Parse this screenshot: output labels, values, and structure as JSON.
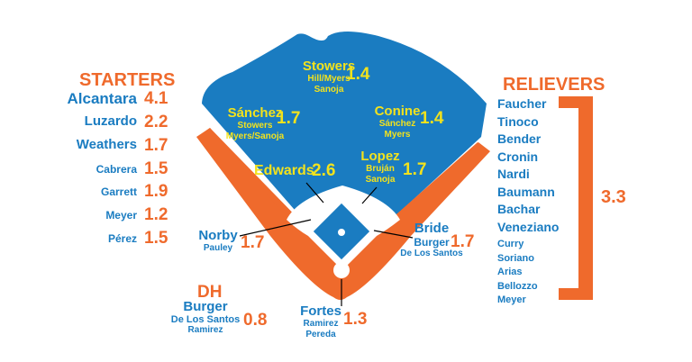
{
  "colors": {
    "blue": "#1a7cc1",
    "orange": "#ef6a2c",
    "yellow": "#f2e21d",
    "infield": "#ffffff"
  },
  "starters": {
    "title": "STARTERS",
    "pitchers": [
      {
        "name": "Alcantara",
        "value": "4.1"
      },
      {
        "name": "Luzardo",
        "value": "2.2"
      },
      {
        "name": "Weathers",
        "value": "1.7"
      },
      {
        "name": "Cabrera",
        "value": "1.5"
      },
      {
        "name": "Garrett",
        "value": "1.9"
      },
      {
        "name": "Meyer",
        "value": "1.2"
      },
      {
        "name": "Pérez",
        "value": "1.5"
      }
    ]
  },
  "relievers": {
    "title": "RELIEVERS",
    "value": "3.3",
    "names": [
      "Faucher",
      "Tinoco",
      "Bender",
      "Cronin",
      "Nardi",
      "Baumann",
      "Bachar",
      "Veneziano",
      "Curry",
      "Soriano",
      "Arias",
      "Bellozzo",
      "Meyer"
    ]
  },
  "positions": {
    "cf": {
      "main": "Stowers",
      "subs": [
        "Hill/Myers",
        "Sanoja"
      ],
      "value": "1.4"
    },
    "lf": {
      "main": "Sánchez",
      "subs": [
        "Stowers",
        "Myers/Sanoja"
      ],
      "value": "1.7"
    },
    "rf": {
      "main": "Conine",
      "subs": [
        "Sánchez",
        "Myers"
      ],
      "value": "1.4"
    },
    "ss": {
      "main": "Edwards",
      "value": "2.6"
    },
    "2b": {
      "main": "Lopez",
      "subs": [
        "Bruján",
        "Sanoja"
      ],
      "value": "1.7"
    },
    "3b": {
      "main": "Norby",
      "subs": [
        "Pauley"
      ],
      "value": "1.7"
    },
    "1b": {
      "main": "Bride",
      "subs": [
        "Burger",
        "De Los Santos"
      ],
      "value": "1.7"
    },
    "c": {
      "main": "Fortes",
      "subs": [
        "Ramirez",
        "Pereda"
      ],
      "value": "1.3"
    },
    "dh": {
      "title": "DH",
      "main": "Burger",
      "subs": [
        "De Los Santos",
        "Ramirez"
      ],
      "value": "0.8"
    }
  }
}
